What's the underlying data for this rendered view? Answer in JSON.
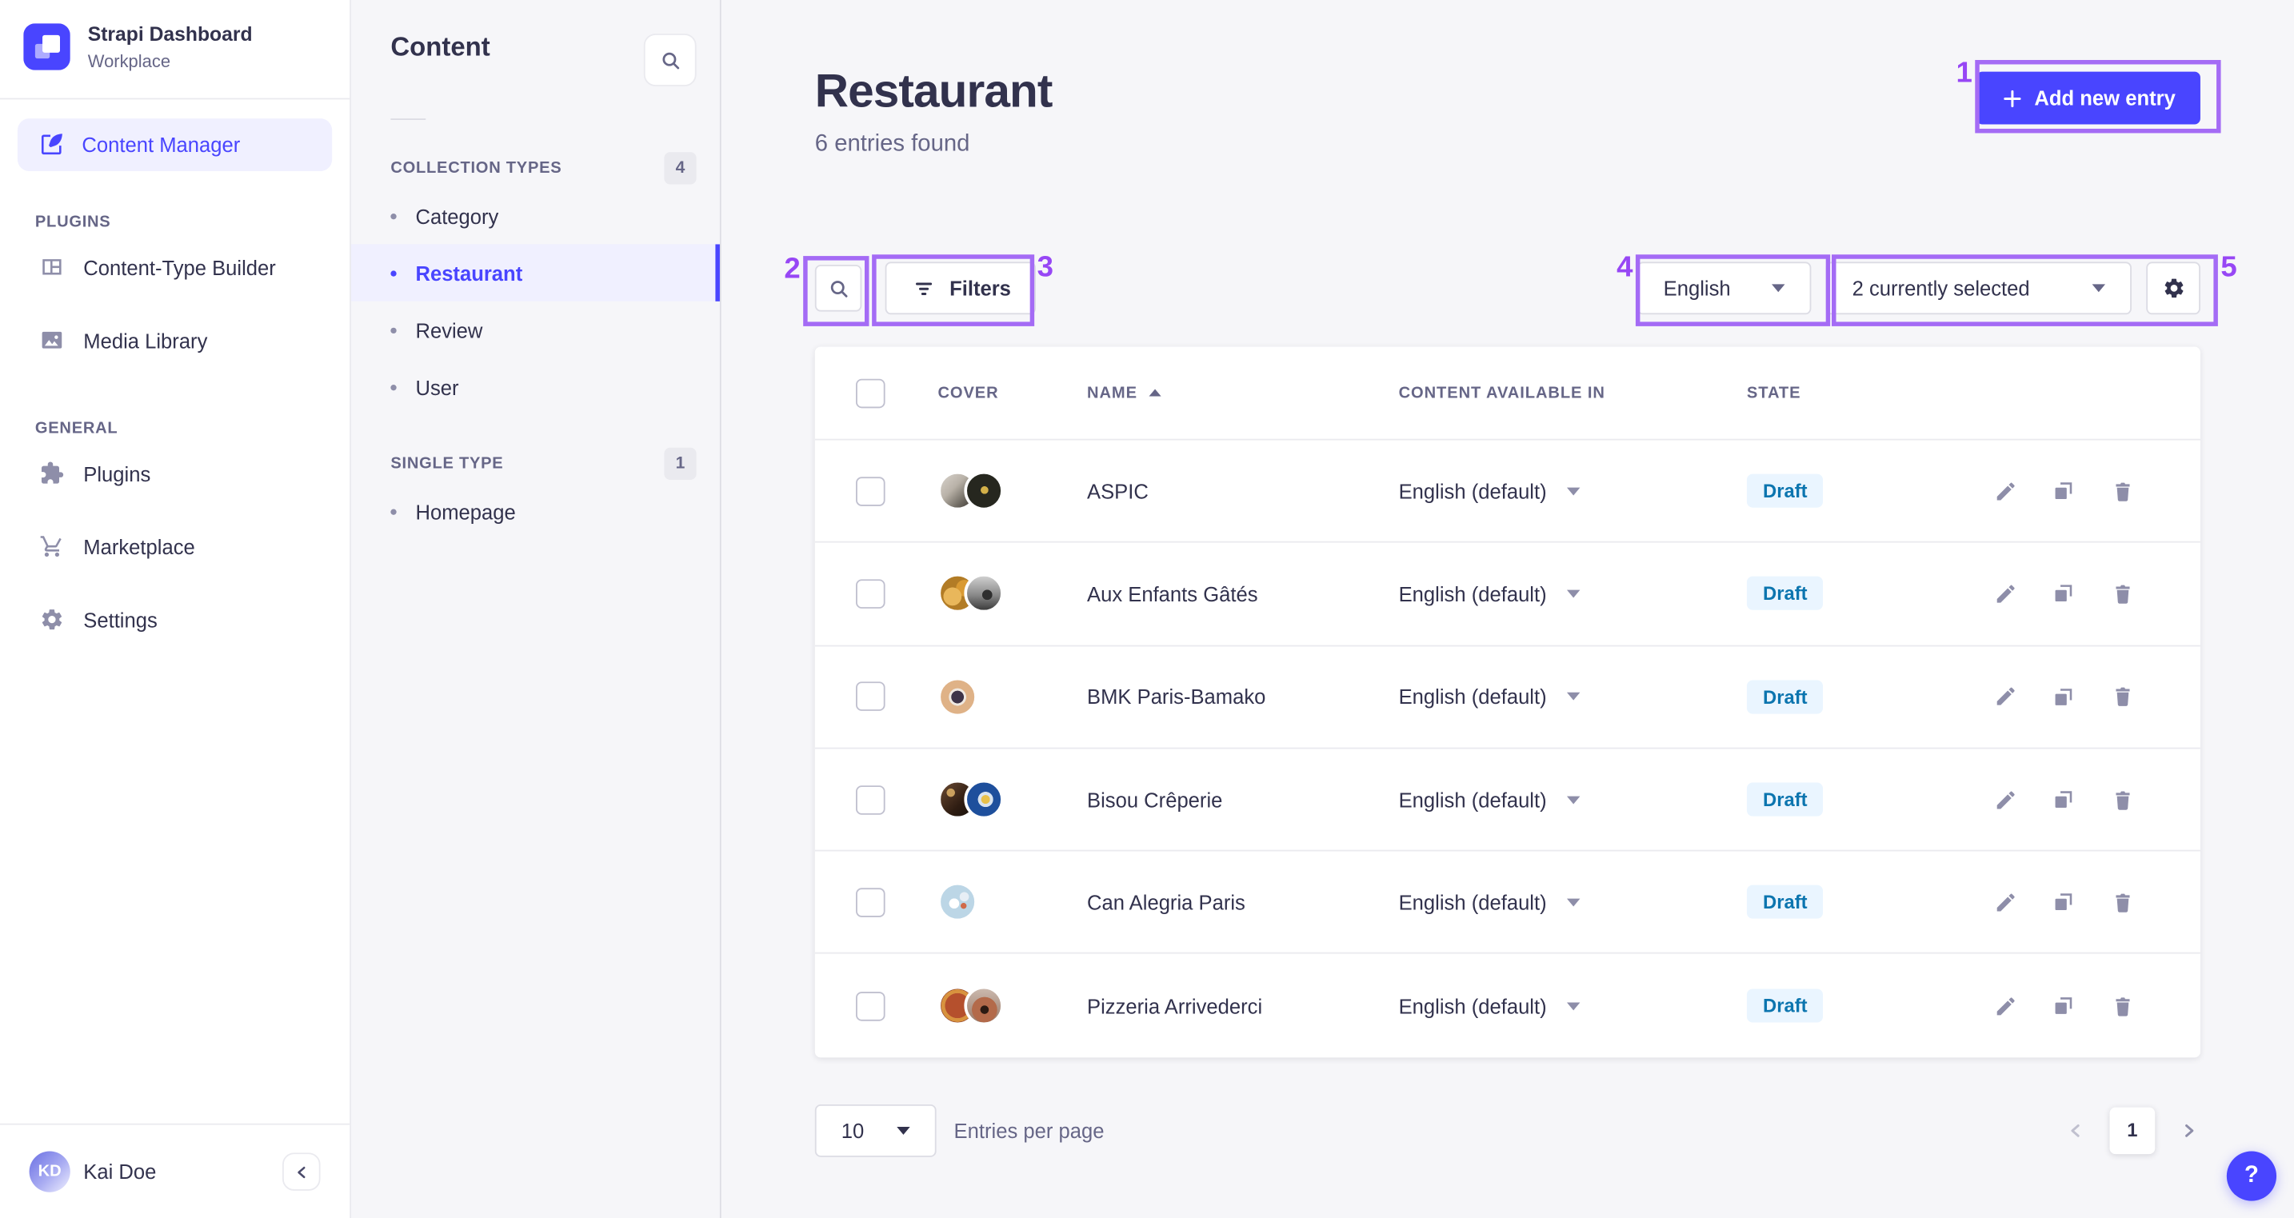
{
  "app": {
    "name": "Strapi Dashboard",
    "workspace": "Workplace",
    "user": {
      "name": "Kai Doe",
      "initials": "KD"
    }
  },
  "colors": {
    "primary": "#4945FF",
    "primary_light": "#F0F0FF",
    "annotation": "#A46BF5",
    "draft_bg": "#EAF5FF",
    "draft_text": "#0C75AF"
  },
  "sidebar": {
    "main_item": {
      "label": "Content Manager",
      "icon": "content-manager-icon"
    },
    "sections": [
      {
        "label": "PLUGINS",
        "items": [
          {
            "label": "Content-Type Builder",
            "icon": "layout-icon"
          },
          {
            "label": "Media Library",
            "icon": "media-icon"
          }
        ]
      },
      {
        "label": "GENERAL",
        "items": [
          {
            "label": "Plugins",
            "icon": "puzzle-icon"
          },
          {
            "label": "Marketplace",
            "icon": "cart-icon"
          },
          {
            "label": "Settings",
            "icon": "gear-icon"
          }
        ]
      }
    ]
  },
  "subnav": {
    "title": "Content",
    "groups": [
      {
        "label": "COLLECTION TYPES",
        "badge": "4",
        "items": [
          {
            "label": "Category",
            "active": false
          },
          {
            "label": "Restaurant",
            "active": true
          },
          {
            "label": "Review",
            "active": false
          },
          {
            "label": "User",
            "active": false
          }
        ]
      },
      {
        "label": "SINGLE TYPE",
        "badge": "1",
        "items": [
          {
            "label": "Homepage",
            "active": false
          }
        ]
      }
    ]
  },
  "header": {
    "title": "Restaurant",
    "subtitle": "6 entries found",
    "add_button": "Add new entry"
  },
  "toolbar": {
    "filters_label": "Filters",
    "locale_select": "English",
    "fields_select": "2 currently selected"
  },
  "table": {
    "columns": {
      "cover": "COVER",
      "name": "NAME",
      "locale": "CONTENT AVAILABLE IN",
      "state": "STATE"
    },
    "sorted_column": "NAME",
    "sort_direction": "asc",
    "rows": [
      {
        "name": "ASPIC",
        "locale": "English (default)",
        "state": "Draft",
        "covers": [
          "cv-aspic-1",
          "cv-aspic-2"
        ]
      },
      {
        "name": "Aux Enfants Gâtés",
        "locale": "English (default)",
        "state": "Draft",
        "covers": [
          "cv-aux-1",
          "cv-aux-2"
        ]
      },
      {
        "name": "BMK Paris-Bamako",
        "locale": "English (default)",
        "state": "Draft",
        "covers": [
          "cv-bmk"
        ]
      },
      {
        "name": "Bisou Crêperie",
        "locale": "English (default)",
        "state": "Draft",
        "covers": [
          "cv-bisou-1",
          "cv-bisou-2"
        ]
      },
      {
        "name": "Can Alegria Paris",
        "locale": "English (default)",
        "state": "Draft",
        "covers": [
          "cv-can"
        ]
      },
      {
        "name": "Pizzeria Arrivederci",
        "locale": "English (default)",
        "state": "Draft",
        "covers": [
          "cv-pizza-1",
          "cv-pizza-2"
        ]
      }
    ]
  },
  "footer": {
    "page_size": "10",
    "entries_label": "Entries per page",
    "page": "1"
  },
  "help": {
    "label": "?"
  },
  "annotations": [
    {
      "n": "1",
      "side": "left"
    },
    {
      "n": "2",
      "side": "left"
    },
    {
      "n": "3",
      "side": "right"
    },
    {
      "n": "4",
      "side": "left"
    },
    {
      "n": "5",
      "side": "right"
    }
  ]
}
